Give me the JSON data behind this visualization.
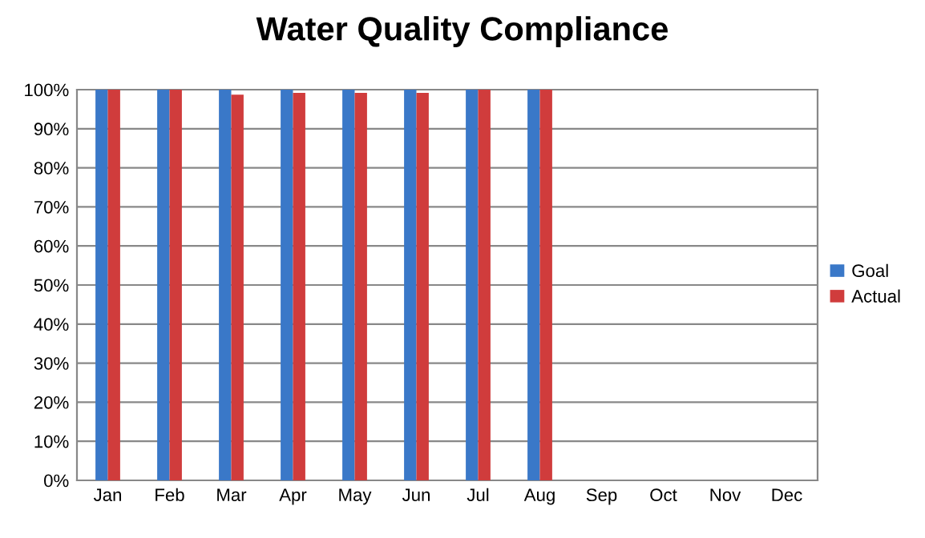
{
  "chart_data": {
    "type": "bar",
    "title": "Water Quality Compliance",
    "categories": [
      "Jan",
      "Feb",
      "Mar",
      "Apr",
      "May",
      "Jun",
      "Jul",
      "Aug",
      "Sep",
      "Oct",
      "Nov",
      "Dec"
    ],
    "series": [
      {
        "name": "Goal",
        "color": "#3a78c8",
        "values": [
          100,
          100,
          100,
          100,
          100,
          100,
          100,
          100,
          null,
          null,
          null,
          null
        ]
      },
      {
        "name": "Actual",
        "color": "#d03c3c",
        "values": [
          100,
          100,
          98.7,
          99.2,
          99.2,
          99.2,
          100,
          100,
          null,
          null,
          null,
          null
        ]
      }
    ],
    "ylim": [
      0,
      100
    ],
    "yticks": [
      {
        "value": 0,
        "label": "0%"
      },
      {
        "value": 10,
        "label": "10%"
      },
      {
        "value": 20,
        "label": "20%"
      },
      {
        "value": 30,
        "label": "30%"
      },
      {
        "value": 40,
        "label": "40%"
      },
      {
        "value": 50,
        "label": "50%"
      },
      {
        "value": 60,
        "label": "60%"
      },
      {
        "value": 70,
        "label": "70%"
      },
      {
        "value": 80,
        "label": "80%"
      },
      {
        "value": 90,
        "label": "90%"
      },
      {
        "value": 100,
        "label": "100%"
      }
    ],
    "grid": "y",
    "legend": "right"
  }
}
